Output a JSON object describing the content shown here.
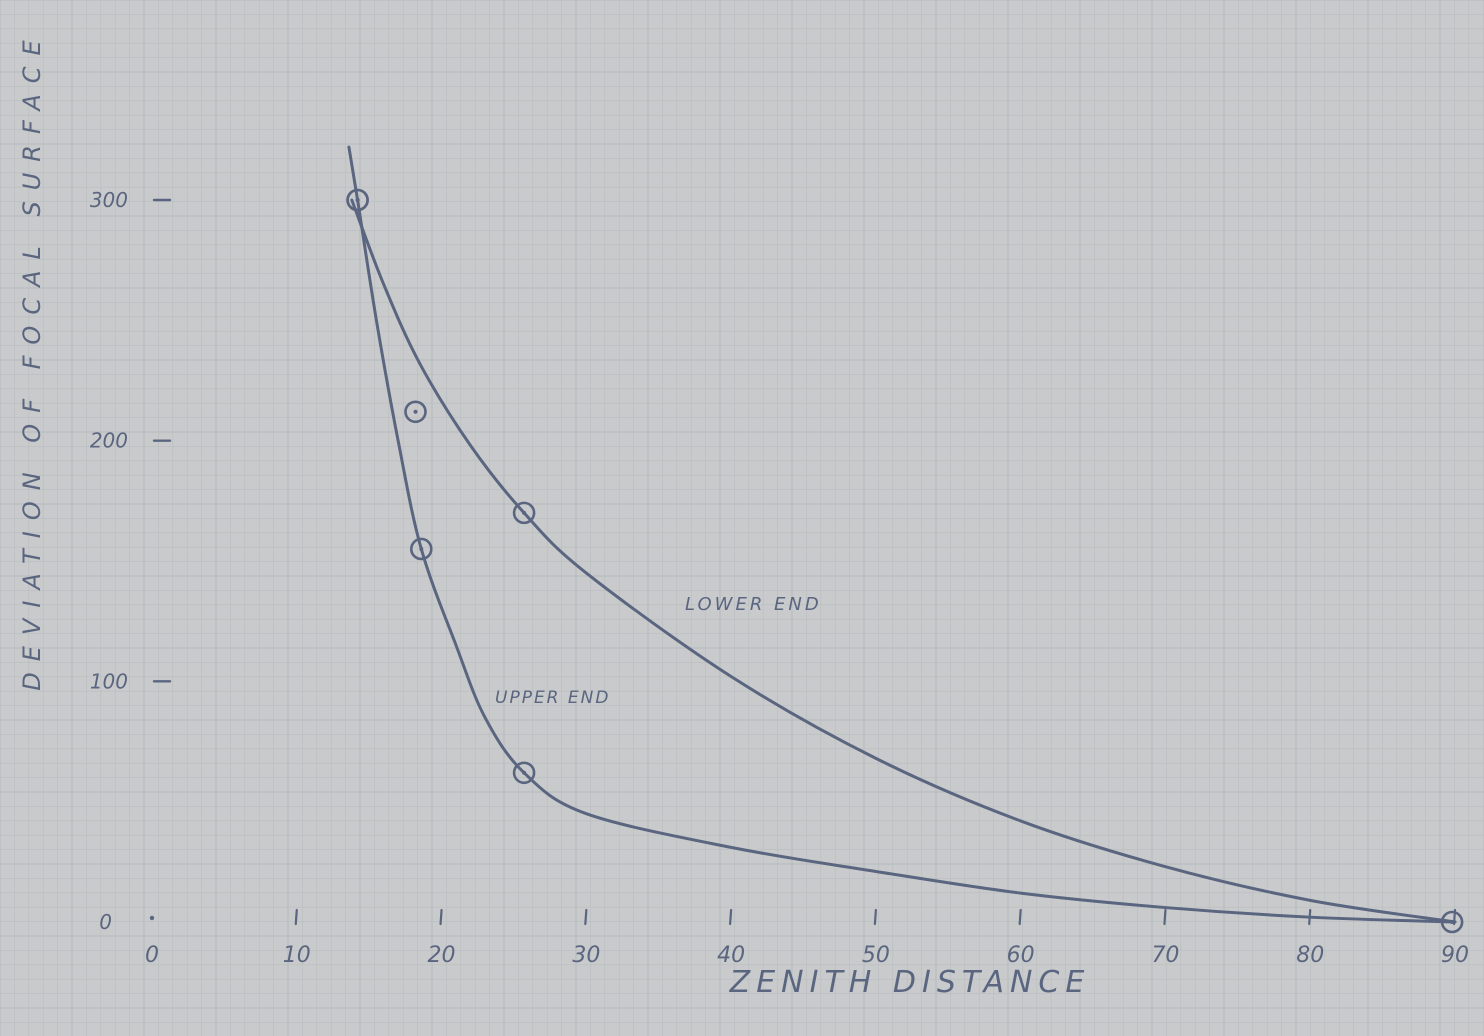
{
  "chart_data": {
    "type": "line",
    "title": "",
    "xlabel": "ZENITH DISTANCE",
    "ylabel": "DEVIATION OF FOCAL SURFACE",
    "x_ticks": [
      0,
      10,
      20,
      30,
      40,
      50,
      60,
      70,
      80,
      90
    ],
    "x_tick_labels": [
      "0",
      "10",
      "20",
      "30",
      "40",
      "50",
      "60",
      "70",
      "80",
      "90"
    ],
    "y_ticks": [
      0,
      100,
      200,
      300
    ],
    "y_tick_labels": [
      "0",
      "100",
      "200",
      "300"
    ],
    "xlim": [
      0,
      90
    ],
    "ylim": [
      0,
      330
    ],
    "grid": true,
    "series": [
      {
        "name": "LOWER END",
        "curve": [
          [
            13.8,
            300
          ],
          [
            16,
            265
          ],
          [
            18.5,
            232
          ],
          [
            22,
            198
          ],
          [
            25.7,
            170
          ],
          [
            30,
            145
          ],
          [
            40,
            102
          ],
          [
            50,
            68
          ],
          [
            60,
            42
          ],
          [
            70,
            23
          ],
          [
            80,
            9
          ],
          [
            90,
            0
          ]
        ],
        "points": [
          [
            14.2,
            300
          ],
          [
            18.2,
            212
          ],
          [
            25.7,
            170
          ]
        ]
      },
      {
        "name": "UPPER END",
        "curve": [
          [
            13.6,
            322
          ],
          [
            14.2,
            300
          ],
          [
            15.5,
            250
          ],
          [
            17,
            200
          ],
          [
            18.6,
            155
          ],
          [
            21,
            115
          ],
          [
            23,
            85
          ],
          [
            25.7,
            62
          ],
          [
            30,
            45
          ],
          [
            40,
            31
          ],
          [
            50,
            21
          ],
          [
            60,
            12
          ],
          [
            70,
            6
          ],
          [
            80,
            2
          ],
          [
            90,
            0
          ]
        ],
        "points": [
          [
            14.2,
            300
          ],
          [
            18.6,
            155
          ],
          [
            25.7,
            62
          ],
          [
            89.8,
            0
          ]
        ]
      }
    ],
    "annotations": [
      "LOWER END",
      "UPPER END"
    ],
    "colors": {
      "ink": "#5a6580",
      "paper": "#c9cacb",
      "grid": "#b8bdbf"
    }
  }
}
